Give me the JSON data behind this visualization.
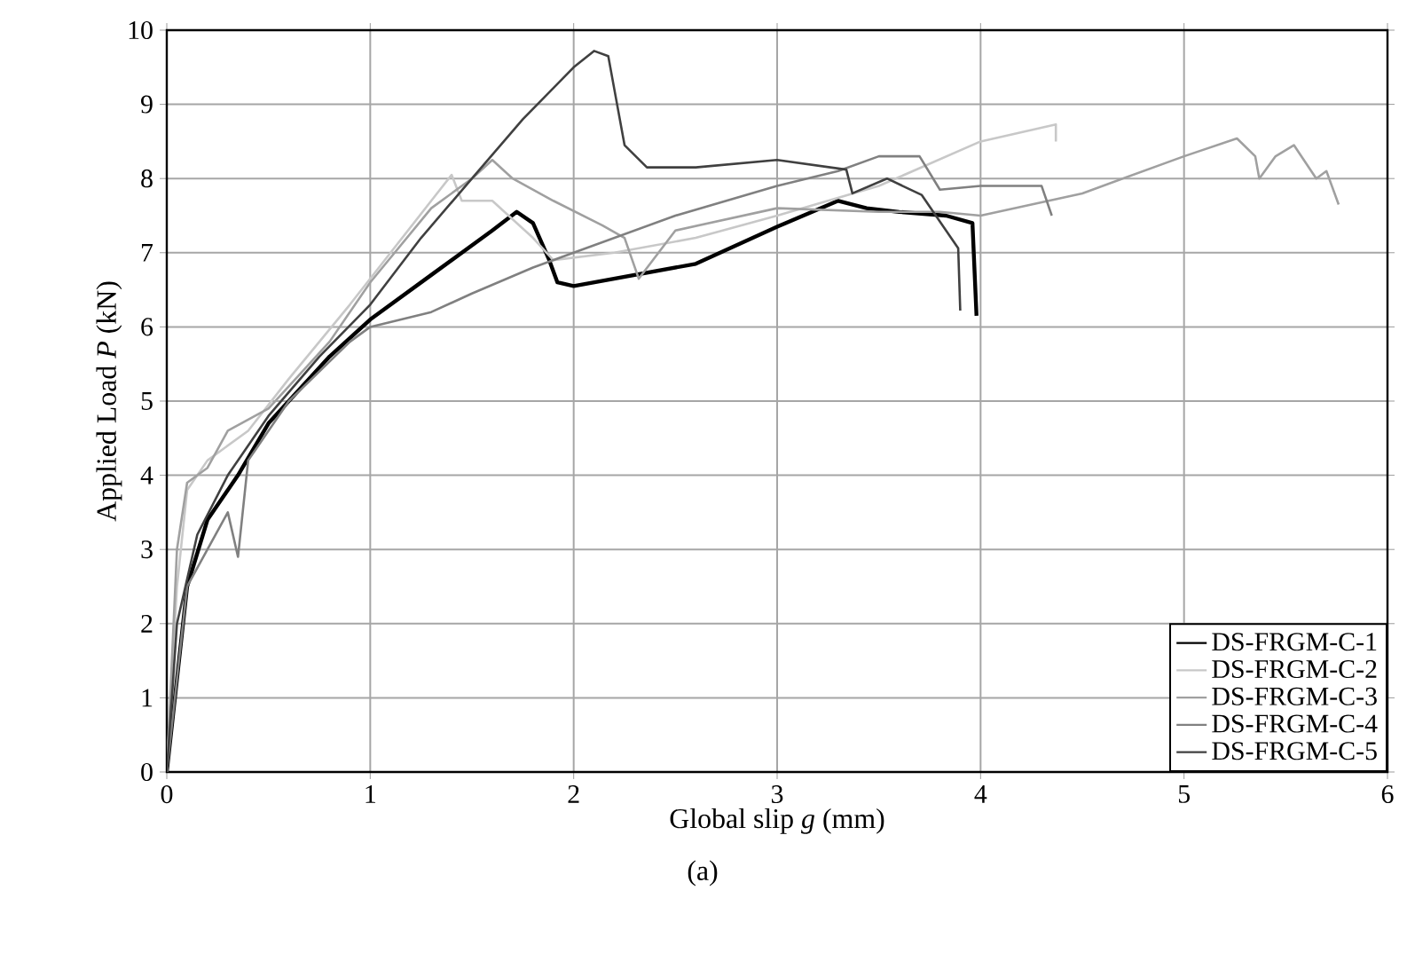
{
  "chart_data": {
    "type": "line",
    "xlabel": "Global slip *g* (mm)",
    "ylabel": "Applied Load *P* (kN)",
    "annotations": [
      "(a)"
    ],
    "xlim": [
      0,
      6
    ],
    "ylim": [
      0,
      10
    ],
    "xticks": [
      0,
      1,
      2,
      3,
      4,
      5,
      6
    ],
    "yticks": [
      0,
      1,
      2,
      3,
      4,
      5,
      6,
      7,
      8,
      9,
      10
    ],
    "grid": true,
    "legend": "bottom right",
    "marker": "none",
    "line_style": "solid",
    "series": [
      {
        "name": "DS-FRGM-C-1",
        "color": "#000000",
        "x": [
          0,
          0.1,
          0.2,
          0.35,
          0.5,
          0.8,
          1.0,
          1.3,
          1.6,
          1.72,
          1.8,
          1.88,
          1.92,
          2.0,
          2.3,
          2.6,
          3.0,
          3.3,
          3.44,
          3.6,
          3.83,
          3.96,
          3.98
        ],
        "values": [
          0,
          2.5,
          3.4,
          4.0,
          4.7,
          5.6,
          6.1,
          6.7,
          7.3,
          7.55,
          7.4,
          6.9,
          6.6,
          6.55,
          6.7,
          6.85,
          7.35,
          7.7,
          7.6,
          7.55,
          7.5,
          7.4,
          6.15
        ]
      },
      {
        "name": "DS-FRGM-C-2",
        "color": "#c8c8c8",
        "x": [
          0,
          0.05,
          0.1,
          0.2,
          0.4,
          0.6,
          0.9,
          1.1,
          1.3,
          1.4,
          1.45,
          1.6,
          1.8,
          1.9,
          2.2,
          2.6,
          3.0,
          3.5,
          4.0,
          4.37,
          4.37
        ],
        "values": [
          0,
          2.5,
          3.8,
          4.2,
          4.6,
          5.3,
          6.3,
          7.0,
          7.7,
          8.05,
          7.7,
          7.7,
          7.2,
          6.9,
          7.0,
          7.2,
          7.5,
          7.9,
          8.5,
          8.73,
          8.5
        ]
      },
      {
        "name": "DS-FRGM-C-3",
        "color": "#a0a0a0",
        "x": [
          0,
          0.05,
          0.1,
          0.2,
          0.3,
          0.5,
          0.8,
          1.0,
          1.3,
          1.5,
          1.6,
          1.7,
          1.9,
          2.14,
          2.25,
          2.32,
          2.5,
          3.0,
          3.5,
          3.8,
          4.0,
          4.5,
          5.0,
          5.26,
          5.35,
          5.37,
          5.45,
          5.54,
          5.65,
          5.7,
          5.76
        ],
        "values": [
          0,
          3.0,
          3.9,
          4.1,
          4.6,
          4.9,
          5.8,
          6.6,
          7.6,
          8.0,
          8.25,
          8.0,
          7.7,
          7.37,
          7.2,
          6.65,
          7.3,
          7.6,
          7.55,
          7.55,
          7.5,
          7.8,
          8.3,
          8.54,
          8.3,
          8.0,
          8.3,
          8.45,
          8.0,
          8.1,
          7.65
        ]
      },
      {
        "name": "DS-FRGM-C-4",
        "color": "#808080",
        "x": [
          0,
          0.1,
          0.3,
          0.35,
          0.4,
          0.6,
          0.9,
          1.0,
          1.3,
          1.5,
          1.8,
          2.0,
          2.5,
          3.0,
          3.3,
          3.5,
          3.7,
          3.8,
          4.0,
          4.3,
          4.35
        ],
        "values": [
          0,
          2.5,
          3.5,
          2.9,
          4.2,
          5.0,
          5.8,
          6.0,
          6.2,
          6.45,
          6.8,
          7.0,
          7.5,
          7.9,
          8.1,
          8.3,
          8.3,
          7.85,
          7.9,
          7.9,
          7.5
        ]
      },
      {
        "name": "DS-FRGM-C-5",
        "color": "#404040",
        "x": [
          0,
          0.05,
          0.15,
          0.3,
          0.5,
          0.75,
          1.0,
          1.25,
          1.5,
          1.75,
          2.0,
          2.1,
          2.17,
          2.2,
          2.25,
          2.36,
          2.6,
          3.0,
          3.34,
          3.37,
          3.54,
          3.71,
          3.89,
          3.9
        ],
        "values": [
          0,
          2.0,
          3.2,
          4.0,
          4.8,
          5.6,
          6.3,
          7.2,
          8.0,
          8.8,
          9.5,
          9.72,
          9.65,
          9.2,
          8.45,
          8.15,
          8.15,
          8.25,
          8.12,
          7.8,
          8.0,
          7.78,
          7.06,
          6.22
        ]
      }
    ]
  }
}
